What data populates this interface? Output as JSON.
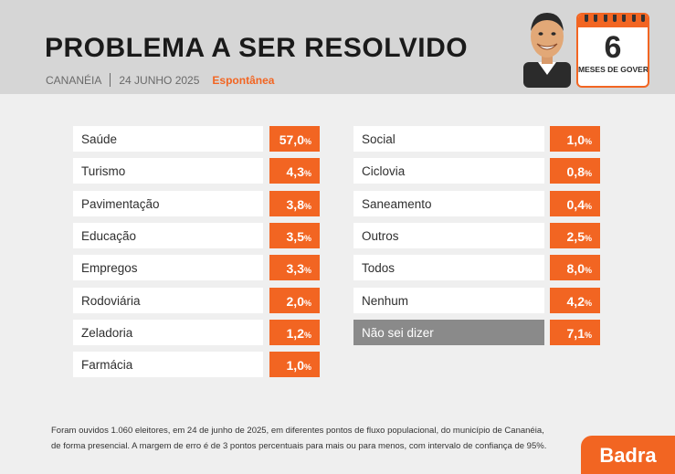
{
  "header": {
    "title": "PROBLEMA A SER RESOLVIDO",
    "city": "CANANÉIA",
    "date": "24 JUNHO 2025",
    "type": "Espontânea"
  },
  "calendar": {
    "number": "6",
    "label": "MESES DE GOVERNO"
  },
  "chart_data": {
    "type": "table",
    "title": "PROBLEMA A SER RESOLVIDO",
    "unit": "%",
    "categories": [
      "Saúde",
      "Turismo",
      "Pavimentação",
      "Educação",
      "Empregos",
      "Rodoviária",
      "Zeladoria",
      "Farmácia",
      "Social",
      "Ciclovia",
      "Saneamento",
      "Outros",
      "Todos",
      "Nenhum",
      "Não sei dizer"
    ],
    "values": [
      57.0,
      4.3,
      3.8,
      3.5,
      3.3,
      2.0,
      1.2,
      1.0,
      1.0,
      0.8,
      0.4,
      2.5,
      8.0,
      4.2,
      7.1
    ],
    "left_column": [
      {
        "label": "Saúde",
        "value": "57,0"
      },
      {
        "label": "Turismo",
        "value": "4,3"
      },
      {
        "label": "Pavimentação",
        "value": "3,8"
      },
      {
        "label": "Educação",
        "value": "3,5"
      },
      {
        "label": "Empregos",
        "value": "3,3"
      },
      {
        "label": "Rodoviária",
        "value": "2,0"
      },
      {
        "label": "Zeladoria",
        "value": "1,2"
      },
      {
        "label": "Farmácia",
        "value": "1,0"
      }
    ],
    "right_column": [
      {
        "label": "Social",
        "value": "1,0"
      },
      {
        "label": "Ciclovia",
        "value": "0,8"
      },
      {
        "label": "Saneamento",
        "value": "0,4"
      },
      {
        "label": "Outros",
        "value": "2,5"
      },
      {
        "label": "Todos",
        "value": "8,0"
      },
      {
        "label": "Nenhum",
        "value": "4,2"
      },
      {
        "label": "Não sei dizer",
        "value": "7,1"
      }
    ],
    "pct_symbol": "%"
  },
  "footnote": {
    "line1": "Foram ouvidos 1.060 eleitores, em 24 de junho de 2025, em diferentes pontos de fluxo populacional, do município de Cananéia,",
    "line2": "de forma presencial. A margem de erro é de 3 pontos percentuais para mais ou para menos, com intervalo de confiança de 95%."
  },
  "brand": "Badra",
  "colors": {
    "accent": "#f26522",
    "grey_row": "#8a8a8a",
    "header_bg": "#d6d6d6"
  }
}
